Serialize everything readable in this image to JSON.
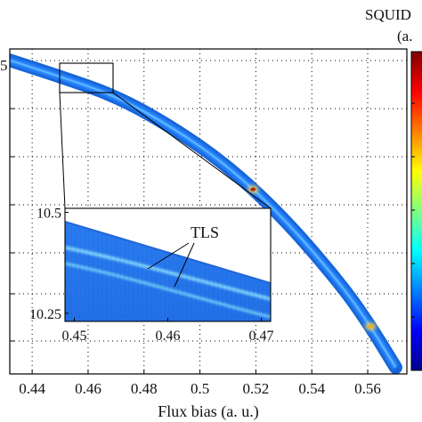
{
  "chart_data": {
    "type": "heatmap",
    "xlabel": "Flux bias (a. u.)",
    "x_ticks": [
      "0.44",
      "0.46",
      "0.48",
      "0.5",
      "0.52",
      "0.54",
      "0.56"
    ],
    "x_tick_values": [
      0.44,
      0.46,
      0.48,
      0.5,
      0.52,
      0.54,
      0.56
    ],
    "xlim": [
      0.432,
      0.574
    ],
    "y_tick_partial": "5",
    "colorbar_label_lines": [
      "SQUID",
      "(a."
    ],
    "colormap": "jet",
    "grid": true,
    "band_curve": {
      "x": [
        0.432,
        0.45,
        0.47,
        0.49,
        0.51,
        0.53,
        0.55,
        0.56,
        0.57
      ],
      "position_from_top_fraction": [
        0.035,
        0.085,
        0.145,
        0.24,
        0.36,
        0.52,
        0.72,
        0.84,
        0.98
      ]
    },
    "hotspots": [
      {
        "x": 0.519,
        "color": "#b03010"
      },
      {
        "x": 0.561,
        "color": "#e8b030"
      }
    ],
    "inset": {
      "xlim": [
        0.449,
        0.471
      ],
      "ylim": [
        10.23,
        10.51
      ],
      "x_ticks": [
        "0.45",
        "0.46",
        "0.47"
      ],
      "x_tick_values": [
        0.45,
        0.46,
        0.47
      ],
      "y_ticks": [
        "10.5",
        "10.25"
      ],
      "y_tick_values": [
        10.5,
        10.25
      ],
      "annotation": "TLS",
      "zoom_region_x": [
        0.449,
        0.469
      ]
    },
    "colors": {
      "background": "#1565d6",
      "band": "#2a82ff",
      "band_edge": "#2f7de8",
      "line": "#7fe3ff"
    }
  }
}
